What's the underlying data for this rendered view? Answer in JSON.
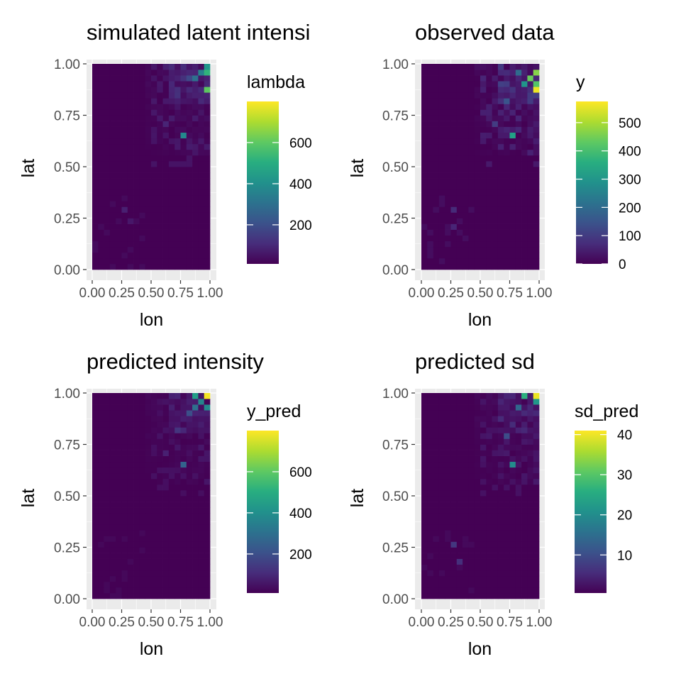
{
  "chart_data": [
    {
      "type": "heatmap",
      "title": "simulated latent intensi",
      "xlabel": "lon",
      "ylabel": "lat",
      "x_ticks": [
        "0.00",
        "0.25",
        "0.50",
        "0.75",
        "1.00"
      ],
      "y_ticks": [
        "0.00",
        "0.25",
        "0.50",
        "0.75",
        "1.00"
      ],
      "xlim": [
        0,
        1
      ],
      "ylim": [
        0,
        1
      ],
      "grid": true,
      "legend": {
        "title": "lambda",
        "position": "right",
        "range": [
          10,
          800
        ],
        "ticks": [
          200,
          400,
          600
        ],
        "tick_labels": [
          "200",
          "400",
          "600"
        ]
      },
      "colormap": "viridis",
      "cells": [
        {
          "x": 0.95,
          "y": 0.97,
          "value": 520
        },
        {
          "x": 0.98,
          "y": 0.98,
          "value": 420
        },
        {
          "x": 0.95,
          "y": 0.88,
          "value": 600
        },
        {
          "x": 0.88,
          "y": 0.92,
          "value": 300
        },
        {
          "x": 0.92,
          "y": 0.96,
          "value": 350
        },
        {
          "x": 0.78,
          "y": 0.66,
          "value": 380
        },
        {
          "x": 0.82,
          "y": 0.92,
          "value": 180
        },
        {
          "x": 0.72,
          "y": 0.86,
          "value": 120
        },
        {
          "x": 0.62,
          "y": 0.72,
          "value": 90
        },
        {
          "x": 0.28,
          "y": 0.28,
          "value": 80
        },
        {
          "x": 0.3,
          "y": 0.24,
          "value": 60
        }
      ]
    },
    {
      "type": "heatmap",
      "title": "observed data",
      "xlabel": "lon",
      "ylabel": "lat",
      "x_ticks": [
        "0.00",
        "0.25",
        "0.50",
        "0.75",
        "1.00"
      ],
      "y_ticks": [
        "0.00",
        "0.25",
        "0.50",
        "0.75",
        "1.00"
      ],
      "xlim": [
        0,
        1
      ],
      "ylim": [
        0,
        1
      ],
      "grid": true,
      "legend": {
        "title": "y",
        "position": "right",
        "range": [
          0,
          575
        ],
        "ticks": [
          0,
          100,
          200,
          300,
          400,
          500
        ],
        "tick_labels": [
          "0",
          "100",
          "200",
          "300",
          "400",
          "500"
        ]
      },
      "colormap": "viridis",
      "cells": [
        {
          "x": 0.95,
          "y": 0.87,
          "value": 560
        },
        {
          "x": 0.98,
          "y": 0.97,
          "value": 470
        },
        {
          "x": 0.9,
          "y": 0.92,
          "value": 440
        },
        {
          "x": 0.95,
          "y": 0.91,
          "value": 420
        },
        {
          "x": 0.85,
          "y": 0.9,
          "value": 300
        },
        {
          "x": 0.75,
          "y": 0.66,
          "value": 330
        },
        {
          "x": 0.82,
          "y": 0.95,
          "value": 200
        },
        {
          "x": 0.7,
          "y": 0.82,
          "value": 150
        },
        {
          "x": 0.62,
          "y": 0.7,
          "value": 100
        },
        {
          "x": 0.28,
          "y": 0.28,
          "value": 70
        },
        {
          "x": 0.26,
          "y": 0.2,
          "value": 60
        }
      ]
    },
    {
      "type": "heatmap",
      "title": "predicted intensity",
      "xlabel": "lon",
      "ylabel": "lat",
      "x_ticks": [
        "0.00",
        "0.25",
        "0.50",
        "0.75",
        "1.00"
      ],
      "y_ticks": [
        "0.00",
        "0.25",
        "0.50",
        "0.75",
        "1.00"
      ],
      "xlim": [
        0,
        1
      ],
      "ylim": [
        0,
        1
      ],
      "grid": true,
      "legend": {
        "title": "y_pred",
        "position": "right",
        "range": [
          10,
          800
        ],
        "ticks": [
          200,
          400,
          600
        ],
        "tick_labels": [
          "200",
          "400",
          "600"
        ]
      },
      "colormap": "viridis",
      "cells": [
        {
          "x": 0.98,
          "y": 1.0,
          "value": 790
        },
        {
          "x": 0.88,
          "y": 0.98,
          "value": 450
        },
        {
          "x": 0.95,
          "y": 0.93,
          "value": 380
        },
        {
          "x": 0.92,
          "y": 0.96,
          "value": 360
        },
        {
          "x": 0.85,
          "y": 0.92,
          "value": 300
        },
        {
          "x": 0.78,
          "y": 0.66,
          "value": 260
        },
        {
          "x": 0.8,
          "y": 0.9,
          "value": 200
        },
        {
          "x": 0.7,
          "y": 0.82,
          "value": 130
        },
        {
          "x": 0.6,
          "y": 0.7,
          "value": 80
        }
      ]
    },
    {
      "type": "heatmap",
      "title": "predicted sd",
      "xlabel": "lon",
      "ylabel": "lat",
      "x_ticks": [
        "0.00",
        "0.25",
        "0.50",
        "0.75",
        "1.00"
      ],
      "y_ticks": [
        "0.00",
        "0.25",
        "0.50",
        "0.75",
        "1.00"
      ],
      "xlim": [
        0,
        1
      ],
      "ylim": [
        0,
        1
      ],
      "grid": true,
      "legend": {
        "title": "sd_pred",
        "position": "right",
        "range": [
          0.5,
          41
        ],
        "ticks": [
          10,
          20,
          30,
          40
        ],
        "tick_labels": [
          "10",
          "20",
          "30",
          "40"
        ]
      },
      "colormap": "viridis",
      "cells": [
        {
          "x": 0.98,
          "y": 1.0,
          "value": 40
        },
        {
          "x": 0.88,
          "y": 0.98,
          "value": 26
        },
        {
          "x": 0.95,
          "y": 0.95,
          "value": 22
        },
        {
          "x": 0.78,
          "y": 0.66,
          "value": 20
        },
        {
          "x": 0.82,
          "y": 0.92,
          "value": 14
        },
        {
          "x": 0.7,
          "y": 0.8,
          "value": 10
        },
        {
          "x": 0.25,
          "y": 0.25,
          "value": 7
        },
        {
          "x": 0.3,
          "y": 0.18,
          "value": 6
        }
      ]
    }
  ]
}
